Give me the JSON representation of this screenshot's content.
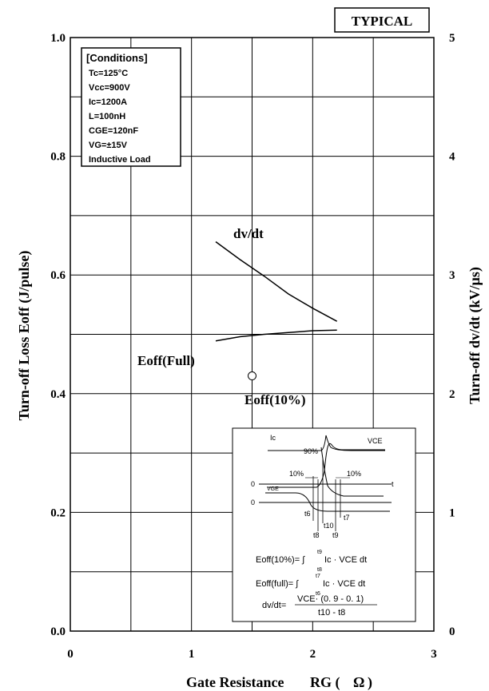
{
  "badge": "TYPICAL",
  "chart_data": {
    "type": "line",
    "xlabel": "Gate Resistance",
    "xlabel_symbol": "RG (",
    "xlabel_unit": "Ω",
    "xlabel_close": ")",
    "ylabel_left": "Turn-off Loss   Eoff (J/pulse)",
    "ylabel_right": "Turn-off   dv/dt (kV/µs)",
    "xlim": [
      0,
      3
    ],
    "ylim_left": [
      0,
      1.0
    ],
    "ylim_right": [
      0,
      5
    ],
    "x_ticks": [
      "0",
      "1",
      "2",
      "3"
    ],
    "y_left_ticks": [
      "0.0",
      "0.2",
      "0.4",
      "0.6",
      "0.8",
      "1.0"
    ],
    "y_right_ticks": [
      "0",
      "1",
      "2",
      "3",
      "4",
      "5"
    ],
    "grid": true,
    "series": [
      {
        "name": "dv/dt",
        "axis": "right",
        "x": [
          1.2,
          1.4,
          1.6,
          1.8,
          2.0,
          2.2
        ],
        "y": [
          3.28,
          3.13,
          2.99,
          2.84,
          2.72,
          2.61
        ]
      },
      {
        "name": "Eoff(Full)",
        "axis": "left",
        "x": [
          1.2,
          1.4,
          1.6,
          1.8,
          2.0,
          2.2
        ],
        "y": [
          0.489,
          0.496,
          0.5,
          0.503,
          0.506,
          0.507
        ]
      },
      {
        "name": "Eoff(10%)",
        "axis": "left",
        "marker": "open-circle",
        "x": [
          1.5
        ],
        "y": [
          0.43
        ]
      }
    ]
  },
  "conditions": {
    "title": "[Conditions]",
    "lines": [
      "Tc=125°C",
      "Vcc=900V",
      "Ic=1200A",
      "L=100nH",
      "CGE=120nF",
      "VG=±15V",
      "Inductive Load"
    ]
  },
  "inset": {
    "ic": "Ic",
    "vce_top": "VCE",
    "p90": "90%",
    "p10a": "10%",
    "p10b": "10%",
    "zero_a": "0",
    "zero_b": "0",
    "t": "t",
    "vge": "VGE",
    "t6": "t6",
    "t7": "t7",
    "t8": "t8",
    "t9": "t9",
    "t10": "t10",
    "f1_left": "Eoff(10%)= ∫",
    "f1_top": "t9",
    "f1_bot": "t8",
    "f1_right": "Ic · VCE dt",
    "f2_left": "Eoff(full)= ∫",
    "f2_top": "t7",
    "f2_bot": "t6",
    "f2_right": "Ic · VCE dt",
    "f3_left": "dv/dt=",
    "f3_num": "VCE· (0. 9 - 0. 1)",
    "f3_den": "t10 - t8"
  }
}
